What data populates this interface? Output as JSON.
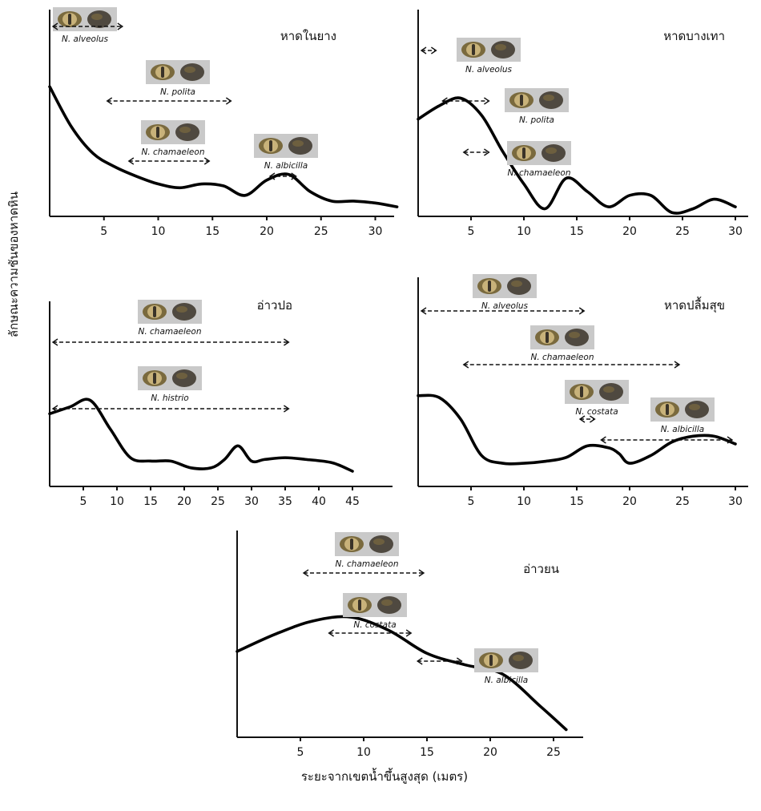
{
  "figure": {
    "y_axis_title": "ลักษณะความชันของหาดหิน",
    "x_axis_title": "ระยะจากเขตน้ำขึ้นสูงสุด (เมตร)"
  },
  "colors": {
    "curve": "#000000",
    "photo_background": "#c9c9c9",
    "shell_outer": "#7a6a3e",
    "shell_inner": "#c8b27a",
    "shell_dark": "#3a3328"
  },
  "chart_data": [
    {
      "type": "line",
      "title": "หาดในยาง",
      "xlim": [
        0,
        32
      ],
      "x_ticks": [
        5,
        10,
        15,
        20,
        25,
        30
      ],
      "x_tick_labels": [
        "5",
        "10",
        "15",
        "20",
        "25",
        "30"
      ],
      "grid": false,
      "slope_profile": {
        "x": [
          0,
          2,
          4,
          6,
          8,
          10,
          12,
          14,
          16,
          18,
          20,
          22,
          24,
          26,
          28,
          30,
          32
        ],
        "y": [
          0.68,
          0.47,
          0.33,
          0.26,
          0.21,
          0.17,
          0.15,
          0.17,
          0.16,
          0.11,
          0.19,
          0.22,
          0.13,
          0.08,
          0.08,
          0.07,
          0.05
        ]
      },
      "species_ranges": [
        {
          "species": "N. alveolus",
          "x_start": 0,
          "x_end": 7
        },
        {
          "species": "N. polita",
          "x_start": 5,
          "x_end": 17
        },
        {
          "species": "N. chamaeleon",
          "x_start": 7,
          "x_end": 15
        },
        {
          "species": "N. albicilla",
          "x_start": 20,
          "x_end": 23
        }
      ]
    },
    {
      "type": "line",
      "title": "หาดบางเทา",
      "xlim": [
        0,
        31
      ],
      "x_ticks": [
        5,
        10,
        15,
        20,
        25,
        30
      ],
      "x_tick_labels": [
        "5",
        "10",
        "15",
        "20",
        "25",
        "30"
      ],
      "grid": false,
      "slope_profile": {
        "x": [
          0,
          2,
          4,
          6,
          8,
          10,
          12,
          14,
          16,
          18,
          20,
          22,
          24,
          26,
          28,
          30
        ],
        "y": [
          0.51,
          0.58,
          0.62,
          0.53,
          0.34,
          0.17,
          0.04,
          0.2,
          0.13,
          0.05,
          0.11,
          0.11,
          0.02,
          0.04,
          0.09,
          0.05
        ]
      },
      "species_ranges": [
        {
          "species": "N. alveolus",
          "x_start": 0,
          "x_end": 2
        },
        {
          "species": "N. polita",
          "x_start": 2,
          "x_end": 7
        },
        {
          "species": "N. chamaeleon",
          "x_start": 4,
          "x_end": 7
        }
      ]
    },
    {
      "type": "line",
      "title": "อ่าวปอ",
      "xlim": [
        0,
        50
      ],
      "x_ticks": [
        5,
        10,
        15,
        20,
        25,
        30,
        35,
        40,
        45
      ],
      "x_tick_labels": [
        "5",
        "10",
        "15",
        "20",
        "25",
        "30",
        "35",
        "40",
        "45"
      ],
      "grid": false,
      "slope_profile": {
        "x": [
          0,
          3,
          6,
          9,
          12,
          15,
          18,
          21,
          24,
          26,
          28,
          30,
          32,
          35,
          38,
          42,
          45
        ],
        "y": [
          0.43,
          0.47,
          0.51,
          0.34,
          0.17,
          0.15,
          0.15,
          0.11,
          0.11,
          0.16,
          0.24,
          0.15,
          0.16,
          0.17,
          0.16,
          0.14,
          0.09
        ]
      },
      "species_ranges": [
        {
          "species": "N. chamaeleon",
          "x_start": 0,
          "x_end": 36
        },
        {
          "species": "N. histrio",
          "x_start": 0,
          "x_end": 36
        }
      ]
    },
    {
      "type": "line",
      "title": "หาดปลื้มสุข",
      "xlim": [
        0,
        31
      ],
      "x_ticks": [
        5,
        10,
        15,
        20,
        25,
        30
      ],
      "x_tick_labels": [
        "5",
        "10",
        "15",
        "20",
        "25",
        "30"
      ],
      "grid": false,
      "slope_profile": {
        "x": [
          0,
          2,
          4,
          6,
          8,
          10,
          12,
          14,
          16,
          18,
          19,
          20,
          22,
          24,
          26,
          28,
          30
        ],
        "y": [
          0.47,
          0.46,
          0.35,
          0.16,
          0.12,
          0.12,
          0.13,
          0.15,
          0.21,
          0.2,
          0.17,
          0.12,
          0.16,
          0.23,
          0.26,
          0.26,
          0.22
        ]
      },
      "species_ranges": [
        {
          "species": "N. alveolus",
          "x_start": 0,
          "x_end": 16
        },
        {
          "species": "N. chamaeleon",
          "x_start": 4,
          "x_end": 25
        },
        {
          "species": "N. costata",
          "x_start": 15,
          "x_end": 17
        },
        {
          "species": "N. albicilla",
          "x_start": 17,
          "x_end": 30
        }
      ]
    },
    {
      "type": "line",
      "title": "อ่าวยน",
      "xlim": [
        0,
        27
      ],
      "x_ticks": [
        5,
        10,
        15,
        20,
        25
      ],
      "x_tick_labels": [
        "5",
        "10",
        "15",
        "20",
        "25"
      ],
      "grid": false,
      "slope_profile": {
        "x": [
          0,
          3,
          6,
          9,
          12,
          15,
          18,
          21,
          24,
          26
        ],
        "y": [
          0.45,
          0.54,
          0.61,
          0.63,
          0.56,
          0.44,
          0.38,
          0.33,
          0.16,
          0.04
        ]
      },
      "species_ranges": [
        {
          "species": "N. chamaeleon",
          "x_start": 5,
          "x_end": 15
        },
        {
          "species": "N. costata",
          "x_start": 7,
          "x_end": 14
        },
        {
          "species": "N. albicilla",
          "x_start": 14,
          "x_end": 18
        }
      ]
    }
  ]
}
